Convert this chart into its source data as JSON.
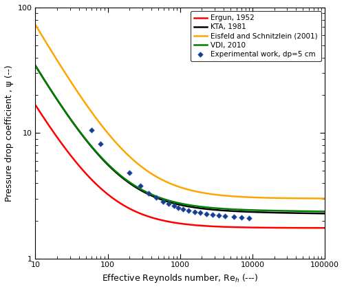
{
  "title": "",
  "xlabel": "Effective Reynolds number, Re$_h$ (---)",
  "ylabel": "Pressure drop coefficient , ψ (--)",
  "xlim": [
    10,
    100000
  ],
  "ylim": [
    1,
    100
  ],
  "legend_labels": [
    "Ergun, 1952",
    "KTA, 1981",
    "Eisfeld and Schnitzlein (2001)",
    "VDI, 2010",
    "Experimental work, dp=5 cm"
  ],
  "line_colors": [
    "red",
    "black",
    "#FFA500",
    "green"
  ],
  "exp_color": "#1a3a8c",
  "exp_x": [
    60,
    80,
    200,
    280,
    370,
    470,
    580,
    700,
    820,
    950,
    1100,
    1300,
    1600,
    1900,
    2300,
    2800,
    3400,
    4200,
    5500,
    7000,
    9000
  ],
  "exp_y": [
    10.5,
    8.2,
    4.8,
    3.8,
    3.3,
    3.05,
    2.85,
    2.72,
    2.62,
    2.55,
    2.48,
    2.42,
    2.36,
    2.31,
    2.27,
    2.23,
    2.2,
    2.17,
    2.14,
    2.12,
    2.09
  ],
  "background_color": "white"
}
